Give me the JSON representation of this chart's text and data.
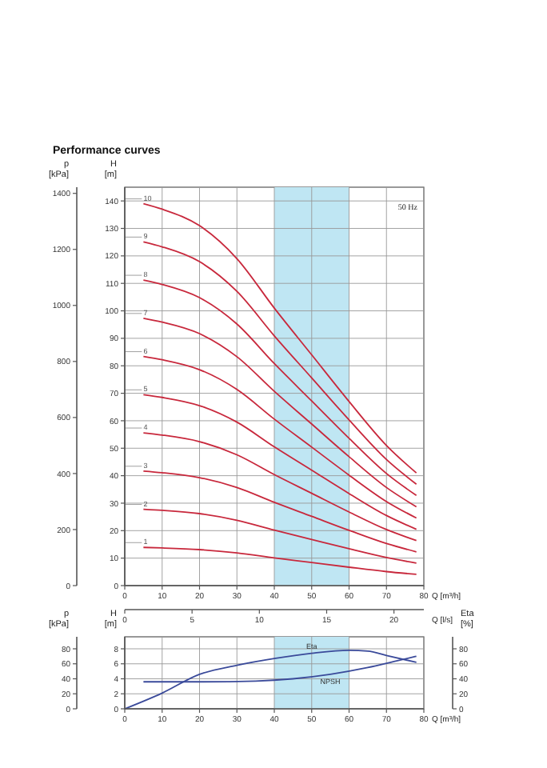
{
  "chart_data": [
    {
      "type": "line",
      "title": "Performance curves",
      "subtitle": "50 Hz",
      "xlabel": "Q [m³/h]",
      "ylabel": "H [m]",
      "y2label": "p [kPa]",
      "x2label": "Q [l/s]",
      "xlim": [
        0,
        80
      ],
      "xticks": [
        0,
        10,
        20,
        30,
        40,
        50,
        60,
        70,
        80
      ],
      "ylim": [
        0,
        145
      ],
      "yticks": [
        0,
        10,
        20,
        30,
        40,
        50,
        60,
        70,
        80,
        90,
        100,
        110,
        120,
        130,
        140
      ],
      "y2lim": [
        0,
        1422
      ],
      "y2ticks": [
        0,
        200,
        400,
        600,
        800,
        1000,
        1200,
        1400
      ],
      "x2lim": [
        0,
        22.22
      ],
      "x2ticks": [
        0,
        5,
        10,
        15,
        20
      ],
      "grid": true,
      "bands": [
        {
          "axis": "x",
          "from": 40,
          "to": 60,
          "color": "#bfe6f3"
        }
      ],
      "x": [
        5,
        10,
        20,
        30,
        40,
        50,
        60,
        70,
        78
      ],
      "series": [
        {
          "name": "1",
          "color": "#c8283c",
          "values": [
            13.9,
            13.7,
            13.1,
            11.9,
            10.1,
            8.4,
            6.7,
            5.1,
            4.1
          ]
        },
        {
          "name": "2",
          "color": "#c8283c",
          "values": [
            27.8,
            27.4,
            26.2,
            23.8,
            20.2,
            16.8,
            13.4,
            10.2,
            8.2
          ]
        },
        {
          "name": "3",
          "color": "#c8283c",
          "values": [
            41.7,
            41.1,
            39.3,
            35.7,
            30.3,
            25.2,
            20.1,
            15.3,
            12.3
          ]
        },
        {
          "name": "4",
          "color": "#c8283c",
          "values": [
            55.6,
            54.8,
            52.4,
            47.6,
            40.4,
            33.6,
            26.8,
            20.4,
            16.4
          ]
        },
        {
          "name": "5",
          "color": "#c8283c",
          "values": [
            69.5,
            68.5,
            65.5,
            59.5,
            50.5,
            42,
            33.5,
            25.5,
            20.5
          ]
        },
        {
          "name": "6",
          "color": "#c8283c",
          "values": [
            83.4,
            82.2,
            78.6,
            71.4,
            60.6,
            50.4,
            40.2,
            30.6,
            24.6
          ]
        },
        {
          "name": "7",
          "color": "#c8283c",
          "values": [
            97.3,
            95.9,
            91.7,
            83.3,
            70.7,
            58.8,
            46.9,
            35.7,
            28.7
          ]
        },
        {
          "name": "8",
          "color": "#c8283c",
          "values": [
            111.2,
            109.6,
            104.8,
            95.2,
            80.8,
            67.2,
            53.6,
            40.8,
            32.8
          ]
        },
        {
          "name": "9",
          "color": "#c8283c",
          "values": [
            125.1,
            123.3,
            117.9,
            107.1,
            90.9,
            75.6,
            60.3,
            45.9,
            36.9
          ]
        },
        {
          "name": "10",
          "color": "#c8283c",
          "values": [
            139,
            137,
            131,
            119,
            101,
            84,
            67,
            51,
            41
          ]
        }
      ]
    },
    {
      "type": "line",
      "xlabel": "Q [m³/h]",
      "ylabel": "H [m]",
      "y2label": "Eta [%]",
      "y3label": "p [kPa]",
      "xlim": [
        0,
        80
      ],
      "xticks": [
        0,
        10,
        20,
        30,
        40,
        50,
        60,
        70,
        80
      ],
      "ylim": [
        0,
        9.6
      ],
      "yticks": [
        0,
        2,
        4,
        6,
        8
      ],
      "y2lim": [
        0,
        96
      ],
      "y2ticks": [
        0,
        20,
        40,
        60,
        80
      ],
      "y3lim": [
        0,
        96
      ],
      "y3ticks": [
        0,
        20,
        40,
        60,
        80
      ],
      "grid": true,
      "bands": [
        {
          "axis": "x",
          "from": 40,
          "to": 60,
          "color": "#bfe6f3"
        }
      ],
      "series": [
        {
          "name": "Eta",
          "color": "#3a4a9a",
          "axis": "y2",
          "x": [
            0,
            10,
            20,
            30,
            40,
            50,
            60,
            65,
            70,
            78
          ],
          "values": [
            0,
            21,
            46,
            58,
            67,
            74,
            78,
            77,
            71,
            62
          ]
        },
        {
          "name": "NPSH",
          "color": "#3a4a9a",
          "x": [
            5,
            20,
            35,
            45,
            55,
            65,
            72,
            78
          ],
          "values": [
            3.6,
            3.6,
            3.7,
            4.0,
            4.6,
            5.5,
            6.3,
            7.0
          ]
        }
      ]
    }
  ]
}
